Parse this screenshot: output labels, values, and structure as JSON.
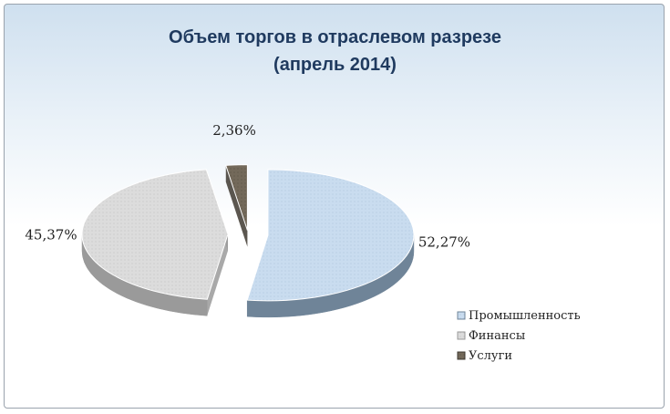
{
  "chart_data": {
    "type": "pie",
    "title_lines": [
      "Объем торгов в отраслевом разрезе",
      "(апрель 2014)"
    ],
    "categories": [
      "Промышленность",
      "Финансы",
      "Услуги"
    ],
    "values": [
      52.27,
      45.37,
      2.36
    ],
    "data_labels": [
      "52,27%",
      "45,37%",
      "2,36%"
    ],
    "colors": [
      "#c7d9ec",
      "#d9d9d9",
      "#6b6152"
    ],
    "legend_position": "bottom-right",
    "exploded": true,
    "style": "3d"
  }
}
